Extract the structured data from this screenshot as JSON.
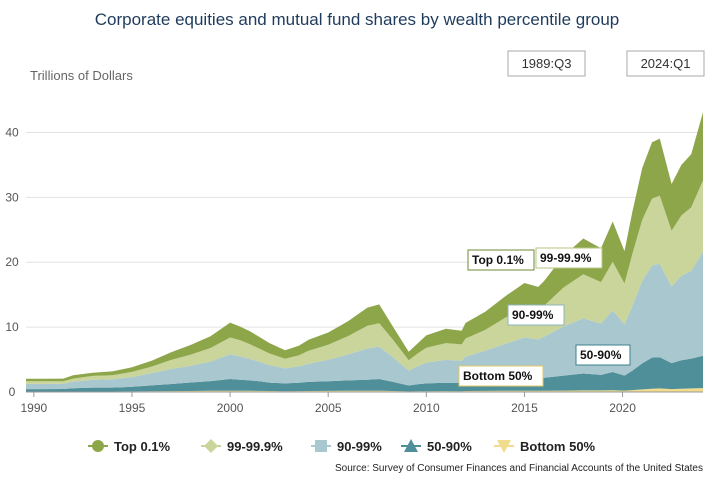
{
  "title": "Corporate equities and mutual fund shares by wealth percentile group",
  "unit_label": "Trillions of Dollars",
  "date_range": {
    "start": "1989:Q3",
    "end": "2024:Q1"
  },
  "source": "Source: Survey of Consumer Finances and Financial Accounts of the United States",
  "colors": {
    "top01": "#8ea64a",
    "p999": "#c9d59a",
    "p9099": "#a9c7ce",
    "p5090": "#4f8f99",
    "bottom50": "#f0dc8c"
  },
  "chart_data": {
    "type": "area",
    "stacked": true,
    "title": "Corporate equities and mutual fund shares by wealth percentile group",
    "ylabel": "Trillions of Dollars",
    "xlim": [
      1989.6,
      2024.1
    ],
    "ylim": [
      0,
      45
    ],
    "yticks": [
      0,
      10,
      20,
      30,
      40
    ],
    "xticks": [
      1990,
      1995,
      2000,
      2005,
      2010,
      2015,
      2020
    ],
    "grid": true,
    "legend": "bottom",
    "x": [
      1989.6,
      1990.5,
      1991.5,
      1992,
      1993,
      1994,
      1995,
      1996,
      1997,
      1998,
      1999,
      2000,
      2000.5,
      2001,
      2001.5,
      2002,
      2002.8,
      2003.5,
      2004,
      2005,
      2006,
      2007,
      2007.6,
      2008.3,
      2009.1,
      2009.6,
      2010,
      2011,
      2011.8,
      2012,
      2013,
      2014,
      2015,
      2015.7,
      2016,
      2017,
      2018,
      2018.9,
      2019.5,
      2020.1,
      2020.5,
      2021,
      2021.5,
      2021.9,
      2022.5,
      2023,
      2023.5,
      2024.1
    ],
    "series": [
      {
        "name": "Bottom 50%",
        "values": [
          0.05,
          0.05,
          0.06,
          0.07,
          0.08,
          0.08,
          0.1,
          0.12,
          0.14,
          0.16,
          0.18,
          0.2,
          0.2,
          0.18,
          0.17,
          0.15,
          0.13,
          0.14,
          0.15,
          0.17,
          0.18,
          0.2,
          0.2,
          0.16,
          0.1,
          0.12,
          0.13,
          0.14,
          0.13,
          0.15,
          0.17,
          0.2,
          0.2,
          0.19,
          0.2,
          0.22,
          0.25,
          0.24,
          0.28,
          0.22,
          0.3,
          0.4,
          0.5,
          0.55,
          0.45,
          0.5,
          0.55,
          0.6
        ]
      },
      {
        "name": "50-90%",
        "values": [
          0.4,
          0.4,
          0.4,
          0.5,
          0.6,
          0.6,
          0.7,
          0.9,
          1.1,
          1.3,
          1.5,
          1.8,
          1.7,
          1.6,
          1.5,
          1.3,
          1.2,
          1.3,
          1.4,
          1.5,
          1.6,
          1.7,
          1.8,
          1.4,
          0.9,
          1.1,
          1.2,
          1.3,
          1.3,
          1.4,
          1.7,
          1.9,
          2.0,
          1.9,
          2.0,
          2.3,
          2.6,
          2.4,
          2.8,
          2.3,
          3.0,
          4.0,
          4.8,
          4.8,
          4.0,
          4.4,
          4.6,
          5.0
        ]
      },
      {
        "name": "90-99%",
        "values": [
          0.8,
          0.8,
          0.8,
          1.0,
          1.2,
          1.3,
          1.5,
          1.9,
          2.3,
          2.6,
          3.0,
          3.8,
          3.6,
          3.3,
          3.0,
          2.7,
          2.3,
          2.5,
          2.8,
          3.3,
          4.0,
          4.8,
          5.0,
          3.8,
          2.3,
          2.8,
          3.2,
          3.5,
          3.4,
          3.9,
          4.5,
          5.3,
          6.2,
          6.0,
          6.3,
          7.6,
          8.5,
          7.9,
          9.5,
          7.9,
          10.0,
          12.7,
          14.2,
          14.4,
          11.8,
          13.0,
          13.5,
          16.0
        ]
      },
      {
        "name": "99-99.9%",
        "values": [
          0.4,
          0.4,
          0.4,
          0.5,
          0.6,
          0.6,
          0.8,
          1.0,
          1.4,
          1.7,
          2.1,
          2.6,
          2.5,
          2.3,
          2.0,
          1.8,
          1.5,
          1.7,
          2.0,
          2.3,
          2.8,
          3.5,
          3.6,
          2.7,
          1.6,
          2.0,
          2.3,
          2.6,
          2.5,
          2.8,
          3.2,
          4.0,
          4.6,
          4.5,
          4.8,
          6.0,
          6.8,
          6.4,
          7.5,
          6.3,
          8.0,
          9.4,
          10.3,
          10.5,
          8.6,
          9.3,
          9.8,
          11.0
        ]
      },
      {
        "name": "Top 0.1%",
        "values": [
          0.4,
          0.4,
          0.4,
          0.5,
          0.5,
          0.6,
          0.7,
          0.9,
          1.2,
          1.5,
          1.8,
          2.3,
          2.1,
          2.0,
          1.8,
          1.6,
          1.3,
          1.5,
          1.7,
          1.9,
          2.3,
          2.8,
          2.9,
          2.0,
          1.3,
          1.6,
          1.9,
          2.2,
          2.1,
          2.4,
          2.8,
          3.3,
          3.8,
          3.6,
          3.8,
          4.9,
          5.5,
          5.2,
          6.2,
          5.0,
          6.5,
          8.0,
          8.7,
          8.8,
          7.2,
          7.8,
          8.2,
          10.5
        ]
      }
    ]
  },
  "area_labels": [
    {
      "series_index": 4,
      "text": "Top 0.1%"
    },
    {
      "series_index": 3,
      "text": "99-99.9%"
    },
    {
      "series_index": 2,
      "text": "90-99%"
    },
    {
      "series_index": 1,
      "text": "50-90%"
    },
    {
      "series_index": 0,
      "text": "Bottom 50%"
    }
  ],
  "legend": [
    {
      "series_index": 4,
      "label": "Top 0.1%",
      "marker": "circle",
      "color_key": "top01"
    },
    {
      "series_index": 3,
      "label": "99-99.9%",
      "marker": "diamond",
      "color_key": "p999"
    },
    {
      "series_index": 2,
      "label": "90-99%",
      "marker": "square",
      "color_key": "p9099"
    },
    {
      "series_index": 1,
      "label": "50-90%",
      "marker": "triangle",
      "color_key": "p5090"
    },
    {
      "series_index": 0,
      "label": "Bottom 50%",
      "marker": "triangle-down",
      "color_key": "bottom50"
    }
  ]
}
